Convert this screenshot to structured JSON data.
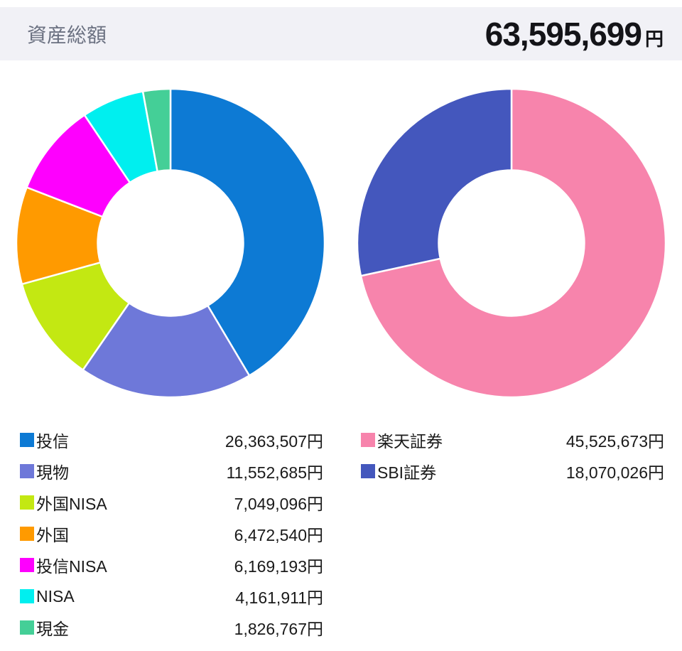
{
  "header": {
    "title": "資産総額",
    "total_value": "63,595,699",
    "currency_unit": "円"
  },
  "chart_data": [
    {
      "type": "pie",
      "donut": true,
      "inner_ratio": 0.47,
      "start_angle": "top",
      "direction": "clockwise",
      "unit": "円",
      "total": 63595699,
      "legend_position": "bottom-left",
      "segments": [
        {
          "label": "投信",
          "value": 26363507,
          "display": "26,363,507円",
          "color": "#0d7ad4"
        },
        {
          "label": "現物",
          "value": 11552685,
          "display": "11,552,685円",
          "color": "#6e78d9"
        },
        {
          "label": "外国NISA",
          "value": 7049096,
          "display": "7,049,096円",
          "color": "#c3e812"
        },
        {
          "label": "外国",
          "value": 6472540,
          "display": "6,472,540円",
          "color": "#ff9a00"
        },
        {
          "label": "投信NISA",
          "value": 6169193,
          "display": "6,169,193円",
          "color": "#fe00fe"
        },
        {
          "label": "NISA",
          "value": 4161911,
          "display": "4,161,911円",
          "color": "#00efef"
        },
        {
          "label": "現金",
          "value": 1826767,
          "display": "1,826,767円",
          "color": "#44cf97"
        }
      ]
    },
    {
      "type": "pie",
      "donut": true,
      "inner_ratio": 0.47,
      "start_angle": "top",
      "direction": "clockwise",
      "unit": "円",
      "total": 63595699,
      "legend_position": "bottom-right",
      "segments": [
        {
          "label": "楽天証券",
          "value": 45525673,
          "display": "45,525,673円",
          "color": "#f784ac"
        },
        {
          "label": "SBI証券",
          "value": 18070026,
          "display": "18,070,026円",
          "color": "#4457bd"
        }
      ]
    }
  ]
}
